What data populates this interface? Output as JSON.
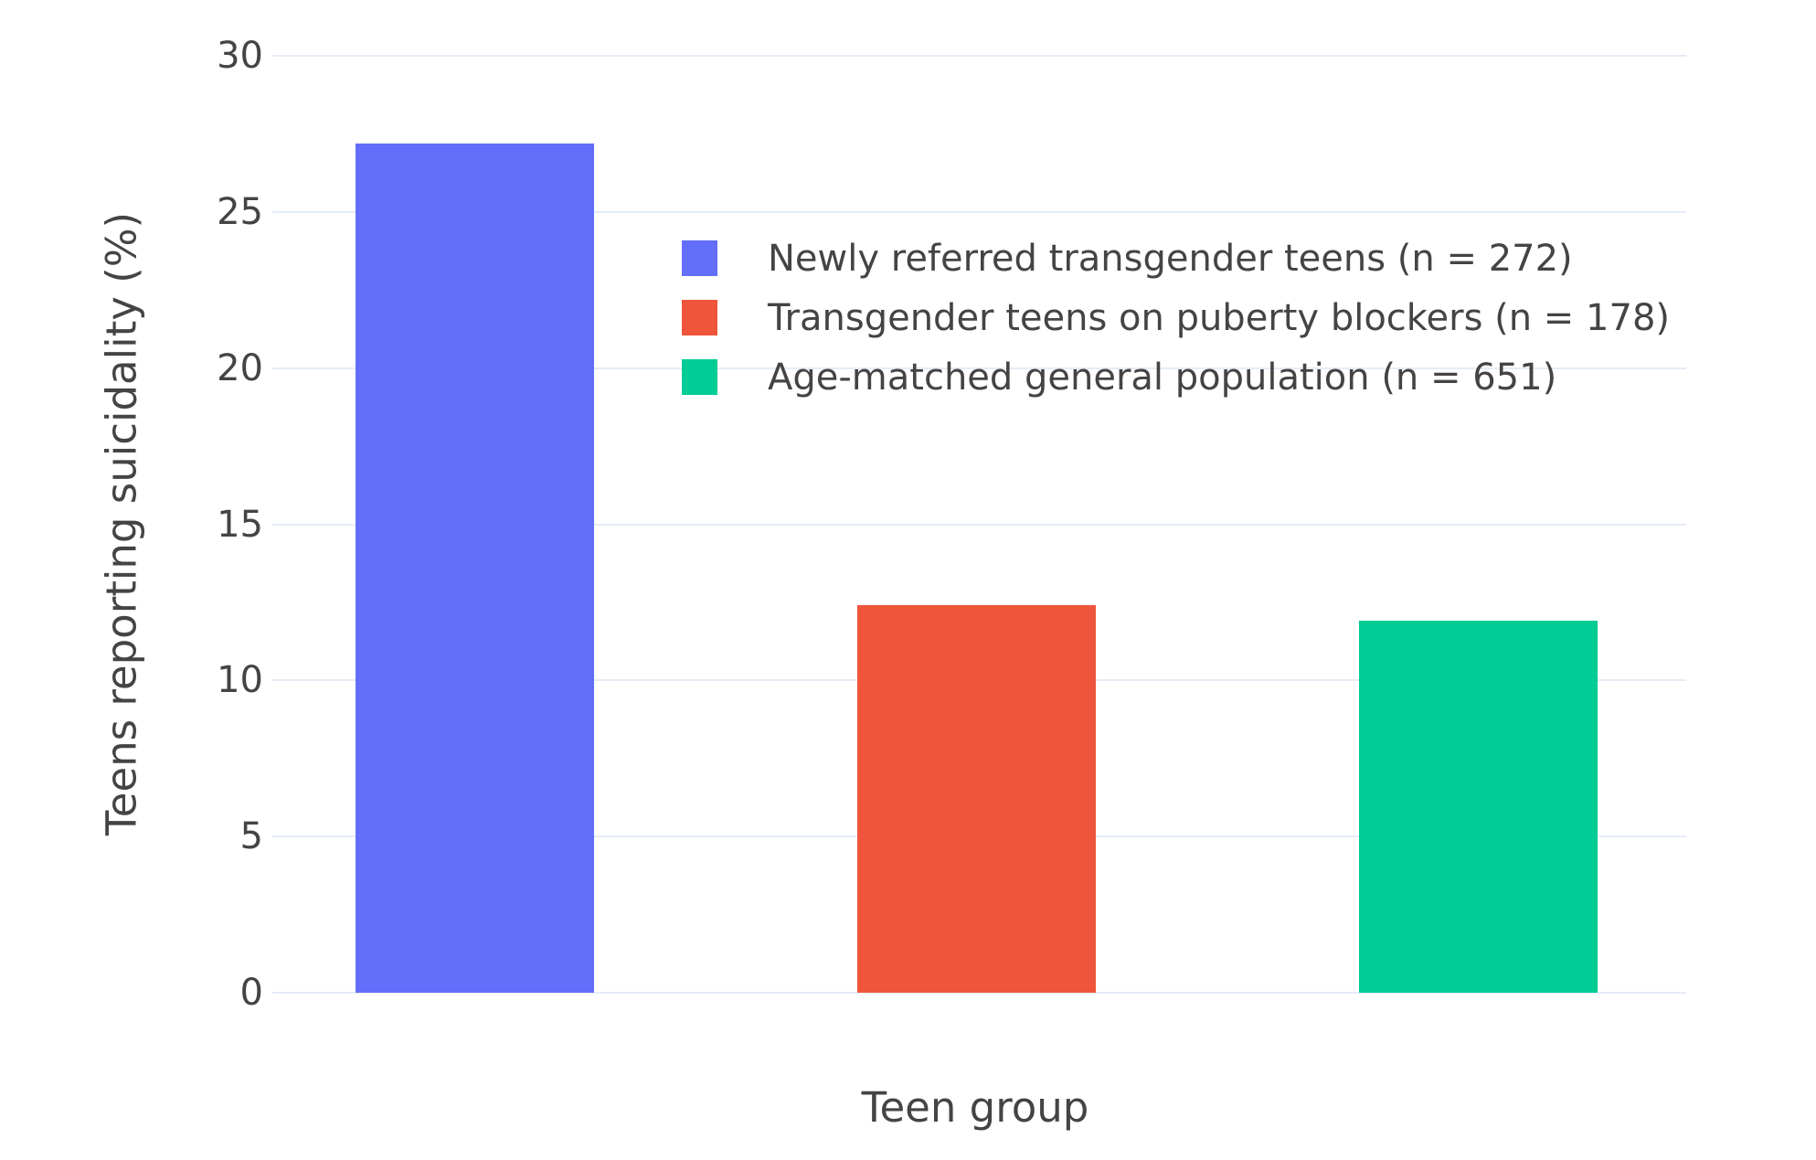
{
  "chart_data": {
    "type": "bar",
    "title": "",
    "xlabel": "Teen group",
    "ylabel": "Teens reporting suicidality (%)",
    "ylim": [
      0,
      30
    ],
    "yticks": [
      0,
      5,
      10,
      15,
      20,
      25,
      30
    ],
    "grid": true,
    "legend_position": "inside-top-center",
    "series": [
      {
        "name": "Newly referred transgender teens (n = 272)",
        "value": 27.2,
        "color": "#636EFA"
      },
      {
        "name": "Transgender teens on puberty blockers (n = 178)",
        "value": 12.4,
        "color": "#EF553B"
      },
      {
        "name": "Age-matched general population (n = 651)",
        "value": 11.9,
        "color": "#00CC96"
      }
    ],
    "colors": {
      "background": "#FFFFFF",
      "gridline": "#E5ECF6",
      "text": "#444444"
    }
  }
}
